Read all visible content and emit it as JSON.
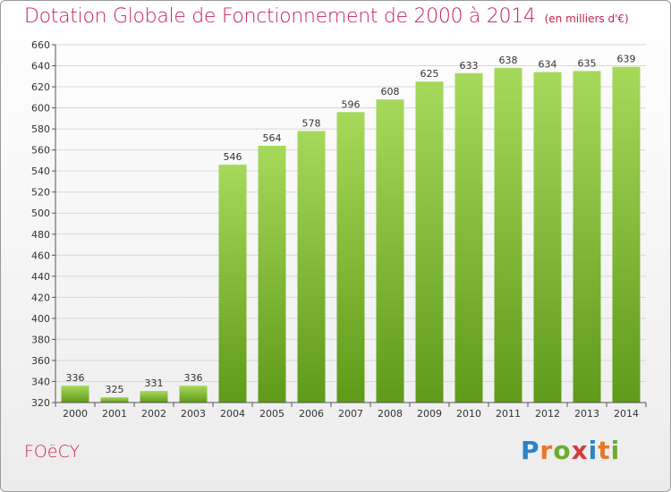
{
  "title": "Dotation Globale de Fonctionnement de 2000 à 2014",
  "subtitle": "(en milliers d'€)",
  "commune": "FOëCY",
  "logo": {
    "text": "Proxiti"
  },
  "colors": {
    "title": "#c8244e",
    "bar": "#7fbc2e",
    "bar_light": "#a6d95a",
    "grid": "#d7d7d7",
    "axis": "#555555"
  },
  "chart_data": {
    "type": "bar",
    "title": "Dotation Globale de Fonctionnement de 2000 à 2014",
    "subtitle": "(en milliers d'€)",
    "xlabel": "",
    "ylabel": "",
    "categories": [
      "2000",
      "2001",
      "2002",
      "2003",
      "2004",
      "2005",
      "2006",
      "2007",
      "2008",
      "2009",
      "2010",
      "2011",
      "2012",
      "2013",
      "2014"
    ],
    "values": [
      336,
      325,
      331,
      336,
      546,
      564,
      578,
      596,
      608,
      625,
      633,
      638,
      634,
      635,
      639
    ],
    "ylim": [
      320,
      660
    ],
    "yticks": [
      320,
      340,
      360,
      380,
      400,
      420,
      440,
      460,
      480,
      500,
      520,
      540,
      560,
      580,
      600,
      620,
      640,
      660
    ],
    "grid": true,
    "data_labels": true
  }
}
